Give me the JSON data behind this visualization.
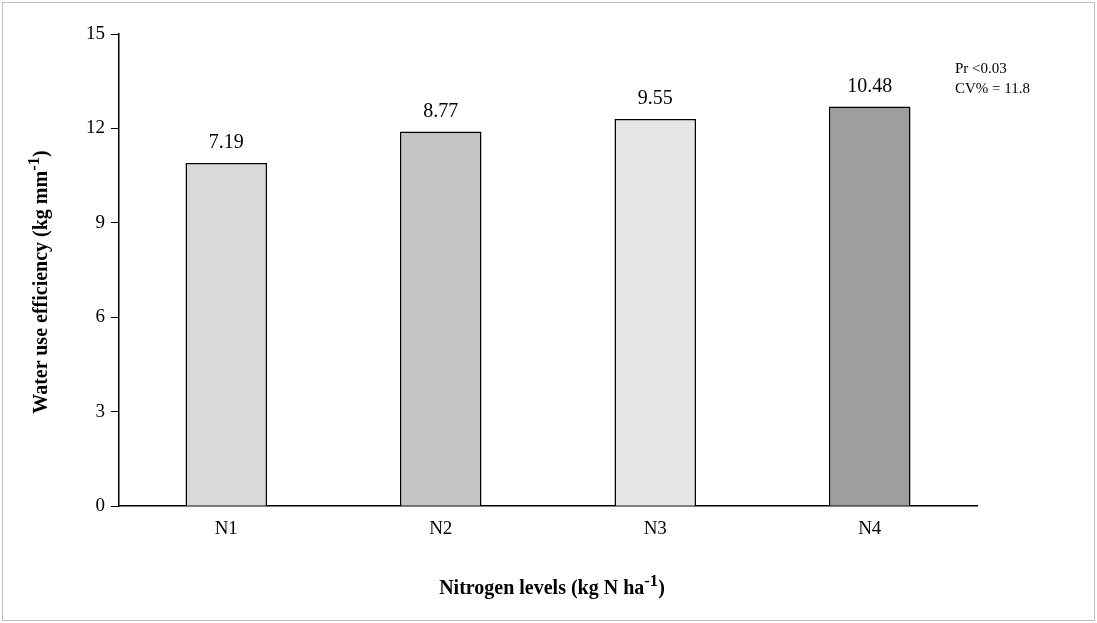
{
  "chart_data": {
    "type": "bar",
    "xlabel": "Nitrogen levels (kg N ha$^{-1}$)",
    "ylabel": "Water use efficiency (kg mm$^{-1}$)",
    "categories": [
      "N1",
      "N2",
      "N3",
      "N4"
    ],
    "values": [
      10.9,
      11.9,
      12.3,
      12.7
    ],
    "colors": [
      "#d9d9d9",
      "#c4c4c4",
      "#e6e6e6",
      "#9e9e9e"
    ],
    "ylim": [
      0,
      15
    ],
    "yticks": [
      0,
      3,
      6,
      9,
      12,
      15
    ],
    "annotations": [
      "Pr <0.03",
      "CV% = 11.8",
      {
        "text": "7.19",
        "x": "N1",
        "y": 10.9
      },
      {
        "text": "8.77",
        "x": "N2",
        "y": 11.9
      },
      {
        "text": "9.55",
        "x": "N3",
        "y": 12.3
      },
      {
        "text": "10.48",
        "x": "N4",
        "y": 12.7
      }
    ]
  }
}
